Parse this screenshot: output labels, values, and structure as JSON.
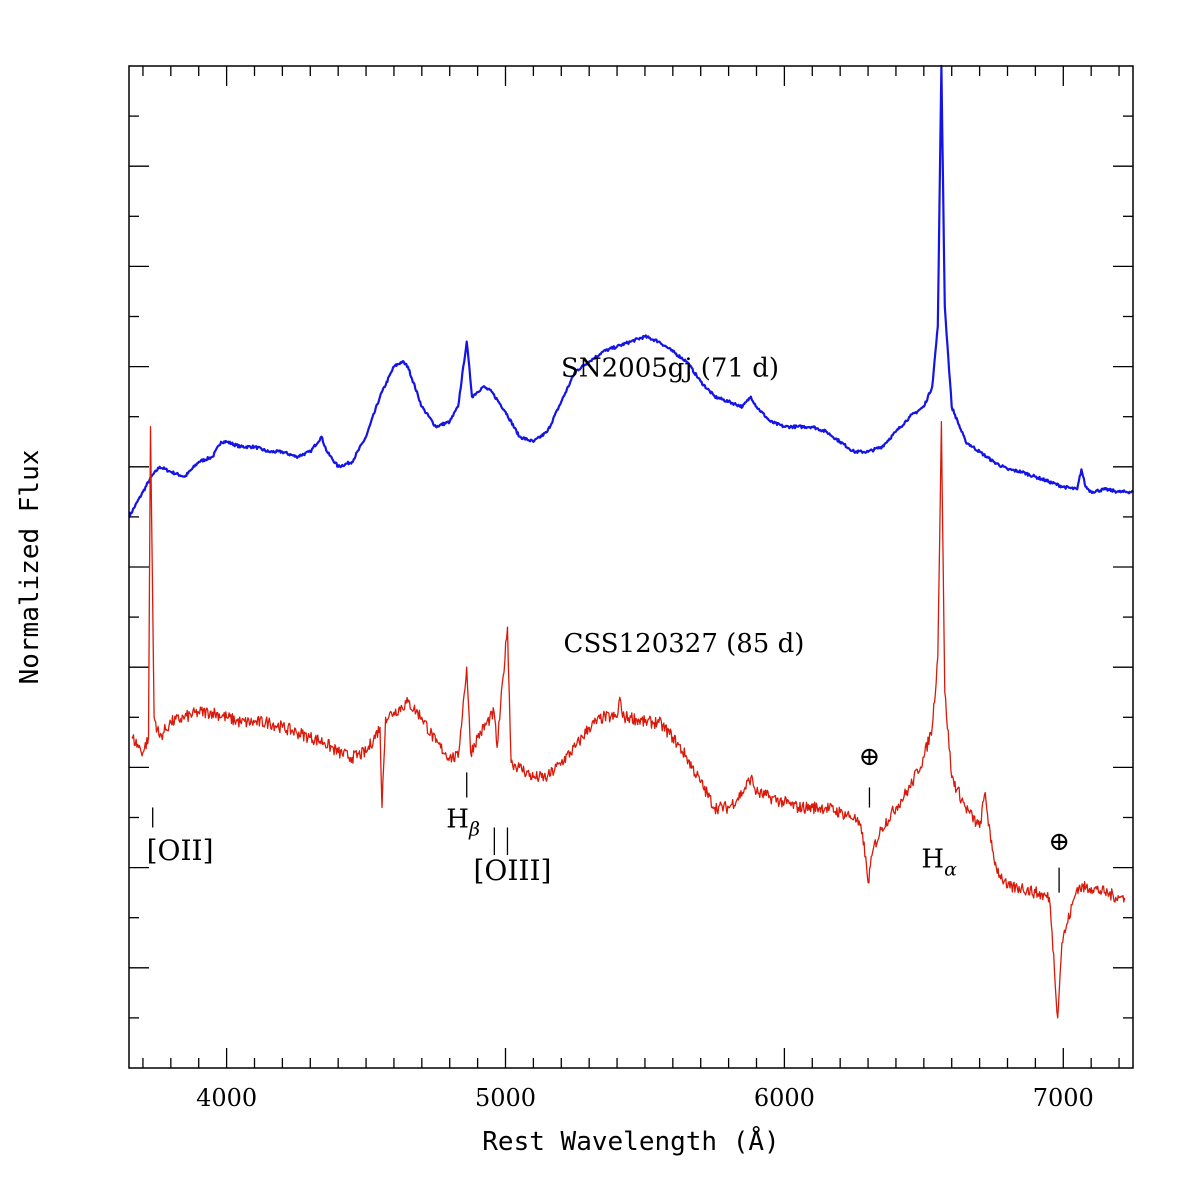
{
  "chart_data": {
    "type": "line",
    "title": "",
    "xlabel": "Rest Wavelength (Å)",
    "ylabel": "Normalized Flux",
    "xlim": [
      3650,
      7250
    ],
    "ylim": [
      0.0,
      20.0
    ],
    "xticks": [
      4000,
      5000,
      6000,
      7000
    ],
    "x_tick_labels": [
      "4000",
      "5000",
      "6000",
      "7000"
    ],
    "y_tick_labels_shown": false,
    "grid": false,
    "legend": "none",
    "series": [
      {
        "name": "SN2005gj (71 d)",
        "color": "#1414e6",
        "points": [
          [
            3650,
            11.0
          ],
          [
            3700,
            11.5
          ],
          [
            3730,
            11.8
          ],
          [
            3760,
            12.0
          ],
          [
            3800,
            11.9
          ],
          [
            3850,
            11.8
          ],
          [
            3900,
            12.1
          ],
          [
            3950,
            12.2
          ],
          [
            3980,
            12.5
          ],
          [
            4000,
            12.5
          ],
          [
            4050,
            12.4
          ],
          [
            4100,
            12.4
          ],
          [
            4150,
            12.3
          ],
          [
            4200,
            12.3
          ],
          [
            4250,
            12.2
          ],
          [
            4300,
            12.3
          ],
          [
            4340,
            12.6
          ],
          [
            4360,
            12.3
          ],
          [
            4400,
            12.0
          ],
          [
            4450,
            12.1
          ],
          [
            4500,
            12.6
          ],
          [
            4550,
            13.4
          ],
          [
            4600,
            14.0
          ],
          [
            4630,
            14.1
          ],
          [
            4650,
            14.0
          ],
          [
            4700,
            13.2
          ],
          [
            4750,
            12.8
          ],
          [
            4800,
            12.9
          ],
          [
            4830,
            13.2
          ],
          [
            4861,
            14.5
          ],
          [
            4880,
            13.4
          ],
          [
            4920,
            13.6
          ],
          [
            4950,
            13.5
          ],
          [
            5000,
            13.1
          ],
          [
            5050,
            12.6
          ],
          [
            5100,
            12.5
          ],
          [
            5150,
            12.7
          ],
          [
            5200,
            13.3
          ],
          [
            5250,
            13.9
          ],
          [
            5300,
            14.1
          ],
          [
            5350,
            14.3
          ],
          [
            5400,
            14.4
          ],
          [
            5450,
            14.5
          ],
          [
            5500,
            14.6
          ],
          [
            5550,
            14.5
          ],
          [
            5600,
            14.3
          ],
          [
            5650,
            14.1
          ],
          [
            5700,
            13.7
          ],
          [
            5750,
            13.4
          ],
          [
            5800,
            13.3
          ],
          [
            5850,
            13.2
          ],
          [
            5880,
            13.4
          ],
          [
            5900,
            13.2
          ],
          [
            5950,
            12.9
          ],
          [
            6000,
            12.8
          ],
          [
            6050,
            12.8
          ],
          [
            6100,
            12.8
          ],
          [
            6150,
            12.7
          ],
          [
            6200,
            12.5
          ],
          [
            6250,
            12.3
          ],
          [
            6300,
            12.3
          ],
          [
            6350,
            12.4
          ],
          [
            6400,
            12.7
          ],
          [
            6450,
            13.0
          ],
          [
            6500,
            13.2
          ],
          [
            6530,
            13.6
          ],
          [
            6550,
            14.8
          ],
          [
            6563,
            20.0
          ],
          [
            6575,
            15.2
          ],
          [
            6600,
            13.2
          ],
          [
            6650,
            12.5
          ],
          [
            6700,
            12.3
          ],
          [
            6750,
            12.1
          ],
          [
            6800,
            11.95
          ],
          [
            6850,
            11.9
          ],
          [
            6900,
            11.8
          ],
          [
            6950,
            11.7
          ],
          [
            7000,
            11.6
          ],
          [
            7050,
            11.55
          ],
          [
            7065,
            11.95
          ],
          [
            7080,
            11.6
          ],
          [
            7100,
            11.5
          ],
          [
            7150,
            11.55
          ],
          [
            7200,
            11.5
          ],
          [
            7250,
            11.5
          ]
        ]
      },
      {
        "name": "CSS120327 (85 d)",
        "color": "#d91a0a",
        "points": [
          [
            3660,
            6.6
          ],
          [
            3700,
            6.3
          ],
          [
            3720,
            6.6
          ],
          [
            3727,
            12.8
          ],
          [
            3740,
            7.0
          ],
          [
            3760,
            6.6
          ],
          [
            3800,
            6.9
          ],
          [
            3850,
            7.0
          ],
          [
            3900,
            7.1
          ],
          [
            3950,
            7.1
          ],
          [
            4000,
            7.0
          ],
          [
            4050,
            6.9
          ],
          [
            4100,
            6.9
          ],
          [
            4150,
            6.9
          ],
          [
            4200,
            6.8
          ],
          [
            4250,
            6.7
          ],
          [
            4300,
            6.6
          ],
          [
            4350,
            6.5
          ],
          [
            4400,
            6.3
          ],
          [
            4450,
            6.2
          ],
          [
            4500,
            6.3
          ],
          [
            4550,
            6.8
          ],
          [
            4557,
            5.2
          ],
          [
            4570,
            7.0
          ],
          [
            4600,
            7.1
          ],
          [
            4650,
            7.3
          ],
          [
            4700,
            7.0
          ],
          [
            4750,
            6.5
          ],
          [
            4800,
            6.2
          ],
          [
            4830,
            6.2
          ],
          [
            4861,
            8.0
          ],
          [
            4875,
            6.3
          ],
          [
            4900,
            6.6
          ],
          [
            4959,
            7.1
          ],
          [
            4970,
            6.4
          ],
          [
            5007,
            8.8
          ],
          [
            5020,
            6.1
          ],
          [
            5050,
            6.0
          ],
          [
            5100,
            5.8
          ],
          [
            5150,
            5.8
          ],
          [
            5200,
            6.1
          ],
          [
            5250,
            6.4
          ],
          [
            5300,
            6.8
          ],
          [
            5350,
            7.0
          ],
          [
            5400,
            7.0
          ],
          [
            5410,
            7.4
          ],
          [
            5420,
            7.0
          ],
          [
            5450,
            7.0
          ],
          [
            5500,
            6.9
          ],
          [
            5550,
            6.9
          ],
          [
            5600,
            6.6
          ],
          [
            5650,
            6.2
          ],
          [
            5700,
            5.7
          ],
          [
            5750,
            5.2
          ],
          [
            5800,
            5.2
          ],
          [
            5850,
            5.5
          ],
          [
            5880,
            5.8
          ],
          [
            5900,
            5.5
          ],
          [
            5950,
            5.4
          ],
          [
            6000,
            5.3
          ],
          [
            6050,
            5.2
          ],
          [
            6100,
            5.2
          ],
          [
            6150,
            5.2
          ],
          [
            6200,
            5.1
          ],
          [
            6250,
            5.0
          ],
          [
            6280,
            4.7
          ],
          [
            6300,
            3.7
          ],
          [
            6320,
            4.4
          ],
          [
            6350,
            4.8
          ],
          [
            6400,
            5.2
          ],
          [
            6450,
            5.6
          ],
          [
            6500,
            6.2
          ],
          [
            6530,
            6.8
          ],
          [
            6550,
            8.2
          ],
          [
            6563,
            12.9
          ],
          [
            6575,
            7.5
          ],
          [
            6600,
            5.8
          ],
          [
            6650,
            5.2
          ],
          [
            6700,
            4.8
          ],
          [
            6720,
            5.5
          ],
          [
            6740,
            4.5
          ],
          [
            6760,
            4.0
          ],
          [
            6800,
            3.6
          ],
          [
            6850,
            3.6
          ],
          [
            6900,
            3.5
          ],
          [
            6950,
            3.4
          ],
          [
            6960,
            2.7
          ],
          [
            6980,
            1.0
          ],
          [
            6995,
            2.5
          ],
          [
            7010,
            2.8
          ],
          [
            7050,
            3.6
          ],
          [
            7100,
            3.6
          ],
          [
            7150,
            3.5
          ],
          [
            7200,
            3.4
          ],
          [
            7220,
            3.4
          ]
        ]
      }
    ],
    "annotations": [
      {
        "text": "SN2005gj (71 d)",
        "x": 5590,
        "y": 13.8,
        "size": 26
      },
      {
        "text": "CSS120327 (85 d)",
        "x": 5640,
        "y": 8.3,
        "size": 26
      },
      {
        "text": "[OII]",
        "x": 3833,
        "y": 4.15,
        "size": 28
      },
      {
        "text": "H",
        "sub": "β",
        "x": 4848,
        "y": 4.8,
        "size": 26
      },
      {
        "text": "[OIII]",
        "x": 5025,
        "y": 3.75,
        "size": 28
      },
      {
        "text": "⊕",
        "x": 6305,
        "y": 6.05,
        "size": 26
      },
      {
        "text": "H",
        "sub": "α",
        "x": 6555,
        "y": 4.0,
        "size": 26
      },
      {
        "text": "⊕",
        "x": 6985,
        "y": 4.35,
        "size": 26
      }
    ],
    "line_markers": [
      {
        "x": 3735,
        "y1": 5.2,
        "y2": 4.8
      },
      {
        "x": 4861,
        "y1": 5.9,
        "y2": 5.4
      },
      {
        "x": 4960,
        "y1": 4.8,
        "y2": 4.25
      },
      {
        "x": 5007,
        "y1": 4.8,
        "y2": 4.25
      },
      {
        "x": 6305,
        "y1": 5.6,
        "y2": 5.2
      },
      {
        "x": 6985,
        "y1": 4.0,
        "y2": 3.5
      }
    ]
  }
}
